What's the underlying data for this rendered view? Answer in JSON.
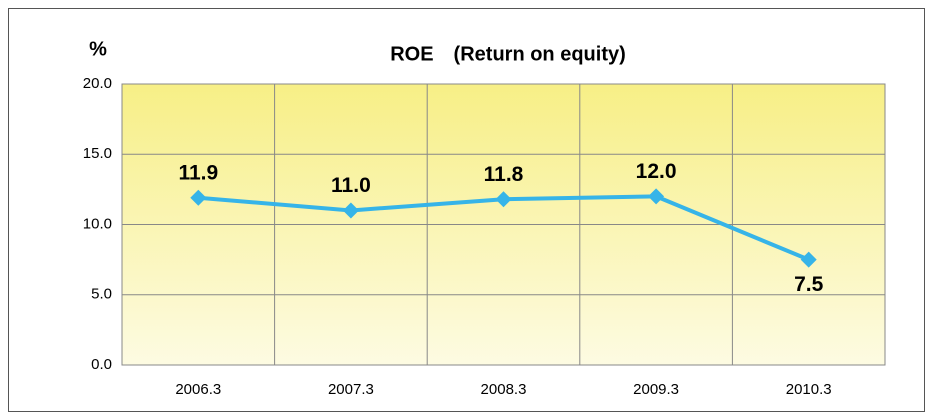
{
  "chart_data": {
    "type": "line",
    "title": "ROE　(Return on equity)",
    "y_label": "%",
    "categories": [
      "2006.3",
      "2007.3",
      "2008.3",
      "2009.3",
      "2010.3"
    ],
    "series": [
      {
        "name": "ROE",
        "color": "#36b4e8",
        "values": [
          11.9,
          11.0,
          11.8,
          12.0,
          7.5
        ],
        "value_labels": [
          "11.9",
          "11.0",
          "11.8",
          "12.0",
          "7.5"
        ]
      }
    ],
    "ylim": [
      0,
      20
    ],
    "yticks": [
      {
        "value": 0,
        "label": "0.0"
      },
      {
        "value": 5,
        "label": "5.0"
      },
      {
        "value": 10,
        "label": "10.0"
      },
      {
        "value": 15,
        "label": "15.0"
      },
      {
        "value": 20,
        "label": "20.0"
      }
    ],
    "grid": true
  }
}
